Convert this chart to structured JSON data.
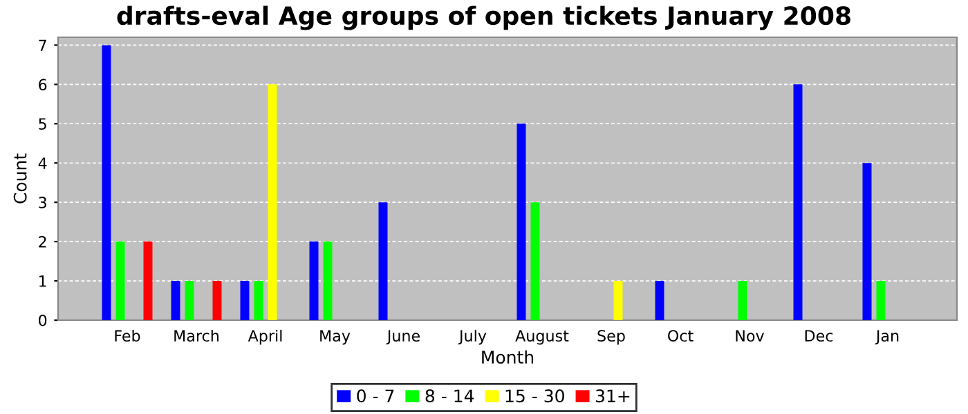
{
  "chart_data": {
    "type": "bar",
    "title": "drafts-eval Age groups of open tickets January 2008",
    "xlabel": "Month",
    "ylabel": "Count",
    "categories": [
      "Feb",
      "March",
      "April",
      "May",
      "June",
      "July",
      "August",
      "Sep",
      "Oct",
      "Nov",
      "Dec",
      "Jan"
    ],
    "series": [
      {
        "name": "0 - 7",
        "color": "#0000ff",
        "values": [
          7,
          1,
          1,
          2,
          3,
          0,
          5,
          0,
          1,
          0,
          6,
          4
        ]
      },
      {
        "name": "8 - 14",
        "color": "#00ff00",
        "values": [
          2,
          1,
          1,
          2,
          0,
          0,
          3,
          0,
          0,
          1,
          0,
          1
        ]
      },
      {
        "name": "15 - 30",
        "color": "#ffff00",
        "values": [
          0,
          0,
          6,
          0,
          0,
          0,
          0,
          1,
          0,
          0,
          0,
          0
        ]
      },
      {
        "name": "31+",
        "color": "#ff0000",
        "values": [
          2,
          1,
          0,
          0,
          0,
          0,
          0,
          0,
          0,
          0,
          0,
          0
        ]
      }
    ],
    "ylim": [
      0,
      7.2
    ],
    "yticks": [
      0,
      1,
      2,
      3,
      4,
      5,
      6,
      7
    ],
    "grid": "y",
    "legend": "bottom"
  }
}
